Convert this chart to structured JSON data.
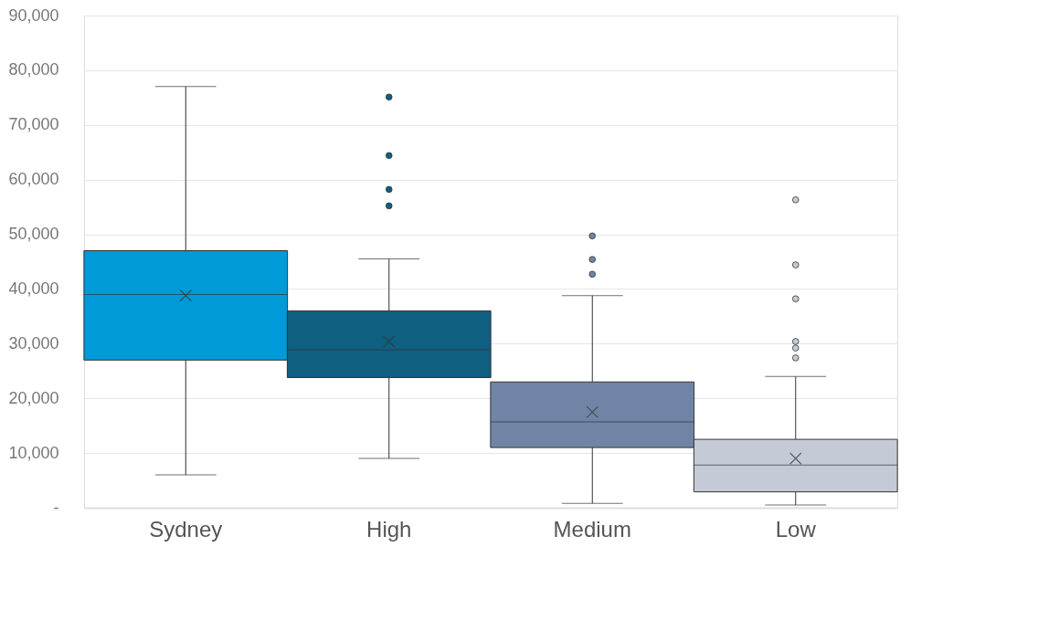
{
  "chart_data": {
    "type": "box",
    "categories": [
      "Sydney",
      "High",
      "Medium",
      "Low"
    ],
    "colors": [
      "#009ad8",
      "#0f5f80",
      "#7085a6",
      "#c4cbd6"
    ],
    "boxes": [
      {
        "low": 6000,
        "q1": 27000,
        "median": 39000,
        "q3": 47000,
        "high": 77000,
        "mean": 38800
      },
      {
        "low": 9000,
        "q1": 23800,
        "median": 28900,
        "q3": 36000,
        "high": 45500,
        "mean": 30400,
        "outliers": [
          75100,
          64400,
          58200,
          55200
        ]
      },
      {
        "low": 800,
        "q1": 11000,
        "median": 15700,
        "q3": 23000,
        "high": 38800,
        "mean": 17500,
        "outliers": [
          49700,
          45400,
          42700
        ]
      },
      {
        "low": 500,
        "q1": 2900,
        "median": 7800,
        "q3": 12500,
        "high": 24000,
        "mean": 9000,
        "outliers": [
          56300,
          44400,
          38200,
          30400,
          29200,
          27400
        ]
      }
    ],
    "ylim": [
      0,
      90000
    ],
    "yticks": [
      {
        "value": 0,
        "label": "-"
      },
      {
        "value": 10000,
        "label": "10,000"
      },
      {
        "value": 20000,
        "label": "20,000"
      },
      {
        "value": 30000,
        "label": "30,000"
      },
      {
        "value": 40000,
        "label": "40,000"
      },
      {
        "value": 50000,
        "label": "50,000"
      },
      {
        "value": 60000,
        "label": "60,000"
      },
      {
        "value": 70000,
        "label": "70,000"
      },
      {
        "value": 80000,
        "label": "80,000"
      },
      {
        "value": 90000,
        "label": "90,000"
      }
    ],
    "grid": "y",
    "marker": "circle"
  }
}
